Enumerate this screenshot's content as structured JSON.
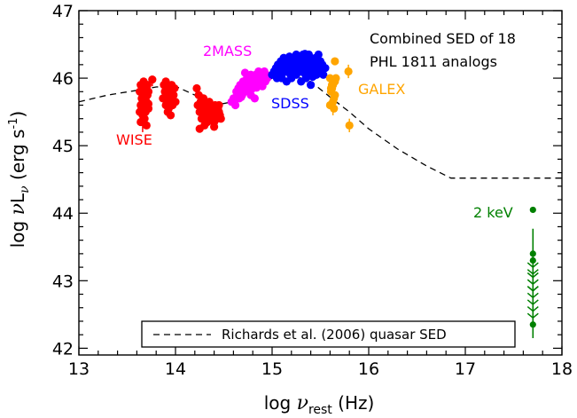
{
  "chart_data": {
    "type": "scatter",
    "xlabel_main": "log ",
    "xlabel_nu": "ν",
    "xlabel_sub": "rest",
    "xlabel_unit": " (Hz)",
    "ylabel_main": "log ",
    "ylabel_nu": "ν",
    "ylabel_L": "L",
    "ylabel_sub": "ν",
    "ylabel_unit": " (erg s",
    "ylabel_exp": "-1",
    "ylabel_close": ")",
    "xlim": [
      13,
      18
    ],
    "ylim": [
      41.9,
      47
    ],
    "xticks": [
      "13",
      "14",
      "15",
      "16",
      "17",
      "18"
    ],
    "yticks": [
      "42",
      "43",
      "44",
      "45",
      "46",
      "47"
    ],
    "title_lines": [
      "Combined SED of 18",
      "PHL 1811 analogs"
    ],
    "legend": {
      "label": "Richards et al. (2006) quasar SED",
      "style": "dashed"
    },
    "colors": {
      "WISE": "#ff0000",
      "2MASS": "#ff00ff",
      "SDSS": "#0000ff",
      "GALEX": "#ffa500",
      "xray": "#008000",
      "line": "#000000"
    },
    "labels": {
      "WISE": "WISE",
      "2MASS": "2MASS",
      "SDSS": "SDSS",
      "GALEX": "GALEX",
      "xray": "2 keV"
    },
    "series": [
      {
        "name": "WISE",
        "x": [
          13.63,
          13.63,
          13.64,
          13.64,
          13.65,
          13.65,
          13.66,
          13.66,
          13.67,
          13.67,
          13.68,
          13.68,
          13.69,
          13.69,
          13.7,
          13.7,
          13.71,
          13.71,
          13.72,
          13.72,
          13.64,
          13.66,
          13.68,
          13.7,
          13.72,
          13.76,
          13.87,
          13.88,
          13.89,
          13.9,
          13.9,
          13.91,
          13.92,
          13.93,
          13.93,
          13.94,
          13.95,
          13.96,
          13.97,
          13.98,
          13.99,
          14.0,
          13.92,
          13.95,
          14.22,
          14.23,
          14.24,
          14.25,
          14.26,
          14.27,
          14.28,
          14.29,
          14.3,
          14.31,
          14.32,
          14.33,
          14.34,
          14.35,
          14.36,
          14.37,
          14.38,
          14.39,
          14.4,
          14.41,
          14.42,
          14.43,
          14.44,
          14.45,
          14.46,
          14.47,
          14.25,
          14.3,
          14.35,
          14.4,
          14.45,
          14.28,
          14.38,
          14.42
        ],
        "y": [
          45.5,
          45.8,
          45.6,
          45.9,
          45.7,
          45.55,
          45.85,
          45.65,
          45.75,
          45.95,
          45.6,
          45.8,
          45.7,
          45.5,
          45.85,
          45.65,
          45.75,
          45.9,
          45.55,
          45.8,
          45.35,
          45.45,
          45.4,
          45.3,
          45.62,
          45.98,
          45.7,
          45.9,
          45.8,
          45.6,
          45.95,
          45.75,
          45.65,
          45.85,
          45.55,
          45.8,
          45.7,
          45.9,
          45.6,
          45.75,
          45.85,
          45.65,
          45.5,
          45.45,
          45.85,
          45.6,
          45.75,
          45.5,
          45.65,
          45.4,
          45.55,
          45.7,
          45.45,
          45.6,
          45.5,
          45.35,
          45.55,
          45.65,
          45.45,
          45.4,
          45.55,
          45.5,
          45.35,
          45.6,
          45.45,
          45.4,
          45.55,
          45.5,
          45.45,
          45.4,
          45.25,
          45.3,
          45.55,
          45.28,
          45.6,
          45.7,
          45.38,
          45.55
        ]
      },
      {
        "name": "2MASS",
        "x": [
          14.58,
          14.6,
          14.62,
          14.63,
          14.64,
          14.65,
          14.66,
          14.67,
          14.68,
          14.69,
          14.7,
          14.71,
          14.72,
          14.73,
          14.74,
          14.75,
          14.76,
          14.77,
          14.78,
          14.79,
          14.8,
          14.81,
          14.82,
          14.83,
          14.84,
          14.85,
          14.86,
          14.87,
          14.88,
          14.89,
          14.9,
          14.91,
          14.92,
          14.93,
          14.94,
          14.95,
          14.72,
          14.78,
          14.82,
          14.86,
          14.9,
          14.68,
          14.76,
          14.84
        ],
        "y": [
          45.65,
          45.7,
          45.6,
          45.8,
          45.75,
          45.85,
          45.7,
          45.9,
          45.8,
          45.75,
          45.95,
          45.85,
          45.8,
          45.9,
          46.0,
          45.85,
          45.95,
          45.8,
          46.05,
          45.9,
          45.85,
          46.0,
          45.95,
          46.05,
          45.9,
          46.0,
          45.95,
          46.05,
          46.0,
          45.95,
          46.05,
          46.0,
          46.1,
          45.95,
          46.05,
          46.0,
          46.08,
          45.75,
          45.7,
          46.1,
          45.88,
          45.72,
          46.02,
          45.86
        ]
      },
      {
        "name": "SDSS",
        "x": [
          15.0,
          15.02,
          15.04,
          15.05,
          15.06,
          15.08,
          15.09,
          15.1,
          15.11,
          15.12,
          15.13,
          15.14,
          15.15,
          15.16,
          15.17,
          15.18,
          15.19,
          15.2,
          15.21,
          15.22,
          15.23,
          15.24,
          15.25,
          15.26,
          15.27,
          15.28,
          15.29,
          15.3,
          15.31,
          15.32,
          15.33,
          15.34,
          15.35,
          15.36,
          15.37,
          15.38,
          15.39,
          15.4,
          15.41,
          15.42,
          15.43,
          15.44,
          15.45,
          15.46,
          15.47,
          15.48,
          15.49,
          15.5,
          15.51,
          15.52,
          15.53,
          15.55,
          15.1,
          15.15,
          15.2,
          15.25,
          15.3,
          15.35,
          15.4,
          15.45,
          15.12,
          15.18,
          15.22,
          15.28,
          15.33,
          15.38,
          15.42,
          15.48,
          15.14,
          15.24,
          15.34,
          15.44
        ],
        "y": [
          46.05,
          46.1,
          46.15,
          46.0,
          46.2,
          46.1,
          46.25,
          46.05,
          46.15,
          46.3,
          46.2,
          46.1,
          46.25,
          46.15,
          46.3,
          46.2,
          46.05,
          46.25,
          46.15,
          46.3,
          46.1,
          46.2,
          46.35,
          46.25,
          46.15,
          46.3,
          46.2,
          46.1,
          46.25,
          46.35,
          46.15,
          46.3,
          46.2,
          46.05,
          46.25,
          46.35,
          46.15,
          46.3,
          46.2,
          46.1,
          46.25,
          46.15,
          46.3,
          46.05,
          46.2,
          46.35,
          46.15,
          46.25,
          46.1,
          46.2,
          46.05,
          46.15,
          46.0,
          45.95,
          46.0,
          46.05,
          45.95,
          46.0,
          45.9,
          46.05,
          46.28,
          46.32,
          46.18,
          46.12,
          46.08,
          46.22,
          46.02,
          46.18,
          46.1,
          46.28,
          46.36,
          46.12
        ]
      },
      {
        "name": "GALEX",
        "x": [
          15.6,
          15.6,
          15.62,
          15.63,
          15.64,
          15.65,
          15.61,
          15.63,
          15.65,
          15.62,
          15.64,
          15.66,
          15.61,
          15.79,
          15.8,
          15.65
        ],
        "y": [
          46.0,
          45.6,
          45.85,
          45.9,
          45.55,
          45.95,
          45.8,
          45.65,
          45.75,
          45.9,
          45.7,
          46.0,
          45.85,
          46.1,
          45.3,
          46.25
        ]
      },
      {
        "name": "2 keV",
        "x": [
          17.7,
          17.7,
          17.7,
          17.7,
          17.7,
          17.7,
          17.7,
          17.7,
          17.7,
          17.7,
          17.7,
          17.7,
          17.7,
          17.7
        ],
        "y": [
          44.05,
          43.4,
          43.3,
          43.2,
          43.1,
          43.05,
          42.95,
          42.85,
          42.75,
          42.65,
          42.55,
          42.45,
          42.85,
          42.35
        ]
      }
    ],
    "model": {
      "name": "Richards et al. (2006) quasar SED",
      "x": [
        13.0,
        13.3,
        13.6,
        13.8,
        14.0,
        14.2,
        14.4,
        14.6,
        14.8,
        15.0,
        15.2,
        15.4,
        15.6,
        15.8,
        16.0,
        16.3,
        16.6,
        16.85,
        17.0,
        17.5,
        18.0
      ],
      "y": [
        45.65,
        45.75,
        45.82,
        45.87,
        45.88,
        45.75,
        45.6,
        45.65,
        45.82,
        46.0,
        46.05,
        45.95,
        45.72,
        45.5,
        45.25,
        44.95,
        44.7,
        44.52,
        44.52,
        44.52,
        44.52
      ]
    }
  }
}
